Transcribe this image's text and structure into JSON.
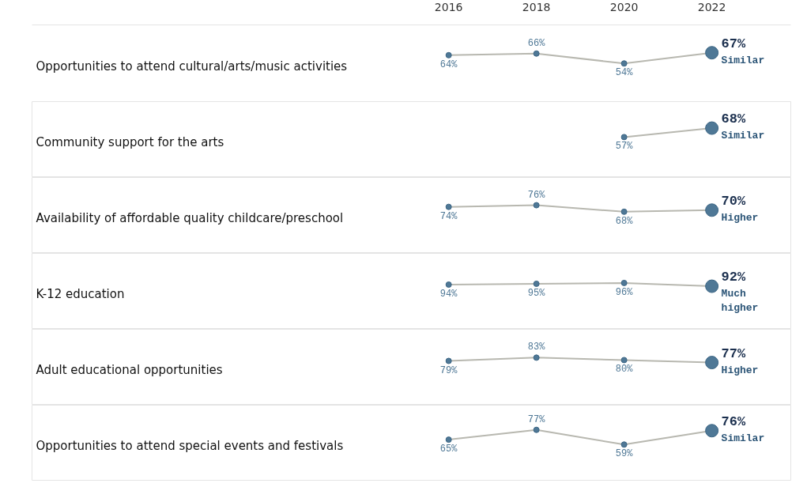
{
  "chart_data": [
    {
      "type": "line",
      "title": "Opportunities to attend cultural/arts/music activities",
      "x": [
        2016,
        2018,
        2020,
        2022
      ],
      "xlim": [
        2006.5,
        2023.8
      ],
      "xticks": [
        2016,
        2018,
        2020,
        2022
      ],
      "series": [
        {
          "color": "#4f7896",
          "values": [
            64,
            66,
            54,
            67
          ],
          "value_labels": [
            "64%",
            "66%",
            "54%",
            "67%"
          ]
        }
      ],
      "annotations": [
        "Similar"
      ],
      "marker": "circle",
      "grid": false
    },
    {
      "type": "line",
      "title": "Community support for the arts",
      "x": [
        2020,
        2022
      ],
      "xlim": [
        2006.5,
        2023.8
      ],
      "xticks": [
        2016,
        2018,
        2020,
        2022
      ],
      "tick_labels": false,
      "series": [
        {
          "color": "#4f7896",
          "values": [
            57,
            68
          ],
          "value_labels": [
            "57%",
            "68%"
          ]
        }
      ],
      "annotations": [
        "Similar"
      ],
      "marker": "circle",
      "grid": false
    },
    {
      "type": "line",
      "title": "Availability of affordable quality childcare/preschool",
      "x": [
        2016,
        2018,
        2020,
        2022
      ],
      "xlim": [
        2006.5,
        2023.8
      ],
      "xticks": [
        2016,
        2018,
        2020,
        2022
      ],
      "tick_labels": false,
      "series": [
        {
          "color": "#4f7896",
          "values": [
            74,
            76,
            68,
            70
          ],
          "value_labels": [
            "74%",
            "76%",
            "68%",
            "70%"
          ]
        }
      ],
      "annotations": [
        "Higher"
      ],
      "marker": "circle",
      "grid": false
    },
    {
      "type": "line",
      "title": "K-12 education",
      "x": [
        2016,
        2018,
        2020,
        2022
      ],
      "xlim": [
        2006.5,
        2023.8
      ],
      "xticks": [
        2016,
        2018,
        2020,
        2022
      ],
      "tick_labels": false,
      "series": [
        {
          "color": "#4f7896",
          "values": [
            94,
            95,
            96,
            92
          ],
          "value_labels": [
            "94%",
            "95%",
            "96%",
            "92%"
          ]
        }
      ],
      "annotations": [
        "Much\nhigher"
      ],
      "marker": "circle",
      "grid": false
    },
    {
      "type": "line",
      "title": "Adult educational opportunities",
      "x": [
        2016,
        2018,
        2020,
        2022
      ],
      "xlim": [
        2006.5,
        2023.8
      ],
      "xticks": [
        2016,
        2018,
        2020,
        2022
      ],
      "tick_labels": false,
      "series": [
        {
          "color": "#4f7896",
          "values": [
            79,
            83,
            80,
            77
          ],
          "value_labels": [
            "79%",
            "83%",
            "80%",
            "77%"
          ]
        }
      ],
      "annotations": [
        "Higher"
      ],
      "marker": "circle",
      "grid": false
    },
    {
      "type": "line",
      "title": "Opportunities to attend special events and festivals",
      "x": [
        2016,
        2018,
        2020,
        2022
      ],
      "xlim": [
        2006.5,
        2023.8
      ],
      "xticks": [
        2016,
        2018,
        2020,
        2022
      ],
      "tick_labels": false,
      "series": [
        {
          "color": "#4f7896",
          "values": [
            65,
            77,
            59,
            76
          ],
          "value_labels": [
            "65%",
            "77%",
            "59%",
            "76%"
          ]
        }
      ],
      "annotations": [
        "Similar"
      ],
      "marker": "circle",
      "grid": false
    }
  ]
}
